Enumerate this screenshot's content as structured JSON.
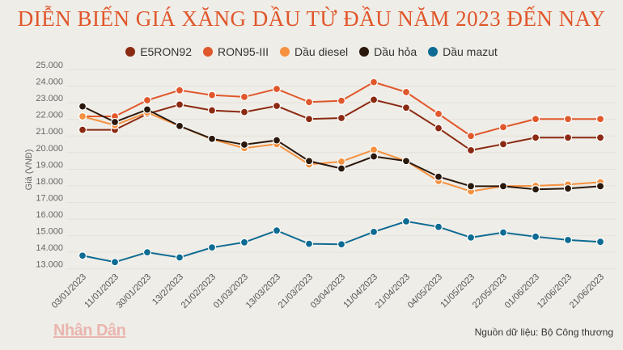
{
  "chart_data": {
    "type": "line",
    "title": "DIỄN BIẾN GIÁ XĂNG DẦU TỪ ĐẦU NĂM 2023 ĐẾN NAY",
    "ylabel": "Giá (VNĐ)",
    "xlabel": "",
    "ylim": [
      13000,
      25000
    ],
    "yticks": [
      "25.000",
      "24.000",
      "23.000",
      "22.000",
      "21.000",
      "20.000",
      "19.000",
      "18.000",
      "17.000",
      "16.000",
      "15.000",
      "14.000",
      "13.000"
    ],
    "grid": true,
    "legend_position": "top",
    "categories": [
      "03/01/2023",
      "11/01/2023",
      "30/01/2023",
      "13/2/2023",
      "21/02/2023",
      "01/03/2023",
      "13/03/2023",
      "21/03/2023",
      "03/04/2023",
      "11/04/2023",
      "21/04/2023",
      "04/05/2023",
      "11/05/2023",
      "22/05/2023",
      "01/06/2023",
      "12/06/2023",
      "21/06/2023"
    ],
    "series": [
      {
        "name": "E5RON92",
        "color": "#8b2a12",
        "values": [
          21370,
          21370,
          22330,
          22890,
          22540,
          22440,
          22810,
          22020,
          22080,
          23180,
          22700,
          21470,
          20140,
          20510,
          20900,
          20900,
          20900
        ]
      },
      {
        "name": "RON95-III",
        "color": "#e0582c",
        "values": [
          22180,
          22180,
          23150,
          23750,
          23460,
          23350,
          23830,
          23040,
          23120,
          24240,
          23640,
          22330,
          21000,
          21530,
          22020,
          22020,
          22020
        ]
      },
      {
        "name": "Dầu diesel",
        "color": "#f5913f",
        "values": [
          22180,
          21650,
          22410,
          21600,
          20800,
          20270,
          20510,
          19290,
          19460,
          20170,
          19490,
          18290,
          17670,
          17980,
          18000,
          18080,
          18220
        ]
      },
      {
        "name": "Dầu hỏa",
        "color": "#2a180c",
        "values": [
          22780,
          21840,
          22590,
          21600,
          20830,
          20480,
          20740,
          19490,
          19040,
          19770,
          19490,
          18550,
          17980,
          17980,
          17790,
          17840,
          17980
        ]
      },
      {
        "name": "Dầu mazut",
        "color": "#0e6b93",
        "values": [
          13800,
          13410,
          14000,
          13690,
          14290,
          14600,
          15310,
          14510,
          14480,
          15230,
          15860,
          15530,
          14890,
          15190,
          14940,
          14740,
          14630
        ]
      }
    ]
  },
  "footer": {
    "logo": "Nhân Dân",
    "source": "Nguồn dữ liệu: Bộ Công thương"
  }
}
